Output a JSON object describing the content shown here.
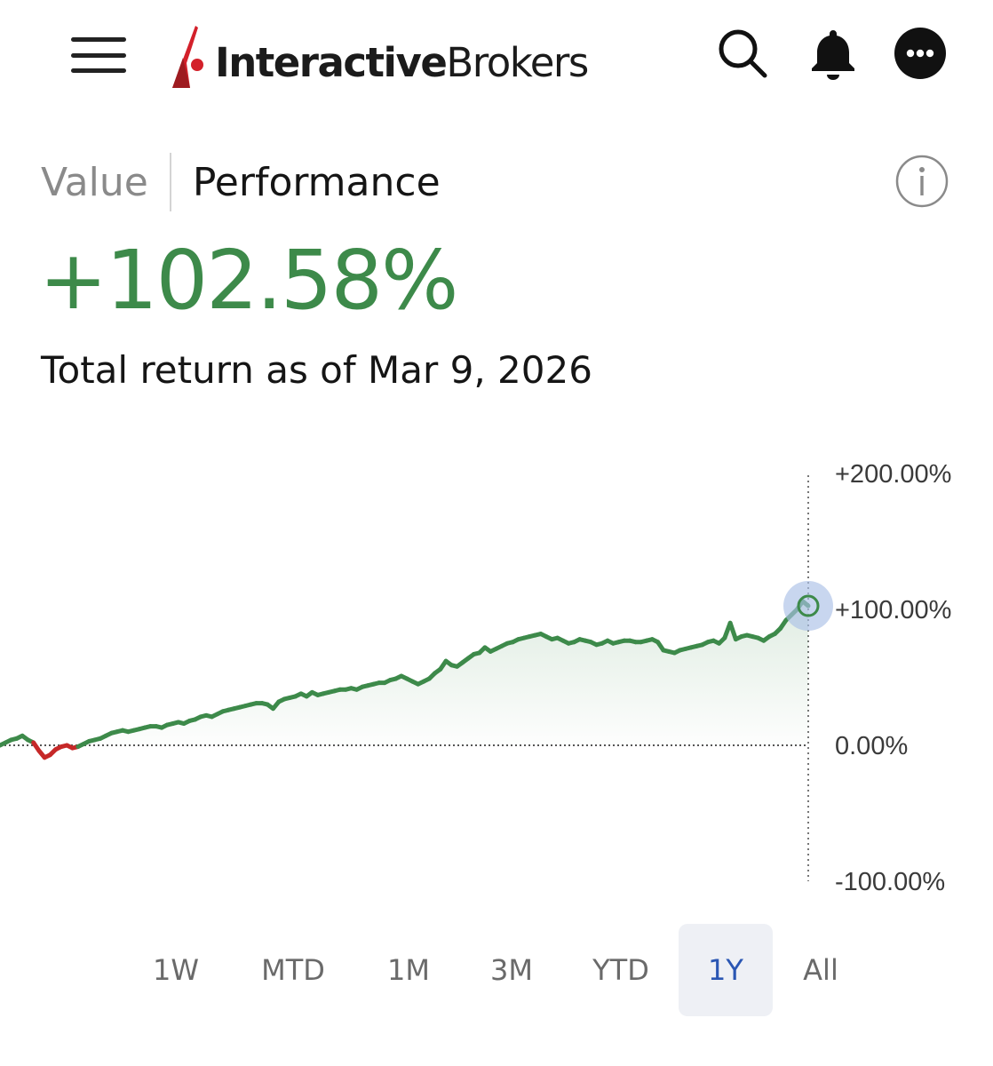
{
  "header": {
    "logo_bold": "Interactive",
    "logo_light": "Brokers",
    "icons": [
      "menu-icon",
      "search-icon",
      "bell-icon",
      "more-icon"
    ]
  },
  "tabs": {
    "value": "Value",
    "performance": "Performance",
    "active": "Performance"
  },
  "performance": {
    "total_return": "+102.58%",
    "subtitle": "Total return as of Mar 9, 2026"
  },
  "colors": {
    "positive": "#3d8a4a",
    "negative": "#c62828",
    "accent": "#2a56b3"
  },
  "chart_data": {
    "type": "line",
    "ylabel": "",
    "ylim": [
      -100,
      200
    ],
    "y_ticks": [
      "+200.00%",
      "+100.00%",
      "0.00%",
      "-100.00%"
    ],
    "grid": false,
    "series": [
      {
        "values": [
          0,
          2,
          4,
          5,
          7,
          4,
          2,
          -4,
          -9,
          -7,
          -3,
          -1,
          0,
          -2,
          -1,
          1,
          3,
          4,
          5,
          7,
          9,
          10,
          11,
          10,
          11,
          12,
          13,
          14,
          14,
          13,
          15,
          16,
          17,
          16,
          18,
          19,
          21,
          22,
          21,
          23,
          25,
          26,
          27,
          28,
          29,
          30,
          31,
          31,
          30,
          27,
          32,
          34,
          35,
          36,
          38,
          36,
          39,
          37,
          38,
          39,
          40,
          41,
          41,
          42,
          41,
          43,
          44,
          45,
          46,
          46,
          48,
          49,
          51,
          49,
          47,
          45,
          47,
          49,
          53,
          56,
          62,
          59,
          58,
          61,
          64,
          67,
          68,
          72,
          69,
          71,
          73,
          75,
          76,
          78,
          79,
          80,
          81,
          82,
          80,
          78,
          79,
          77,
          75,
          76,
          78,
          77,
          76,
          74,
          75,
          77,
          75,
          76,
          77,
          77,
          76,
          76,
          77,
          78,
          76,
          70,
          69,
          68,
          70,
          71,
          72,
          73,
          74,
          76,
          77,
          75,
          79,
          90,
          78,
          80,
          81,
          80,
          79,
          77,
          80,
          82,
          86,
          92,
          96,
          100,
          106,
          102.58
        ]
      }
    ],
    "marker_value": 102.58
  },
  "ranges": {
    "items": [
      "1W",
      "MTD",
      "1M",
      "3M",
      "YTD",
      "1Y",
      "All"
    ],
    "active": "1Y"
  }
}
